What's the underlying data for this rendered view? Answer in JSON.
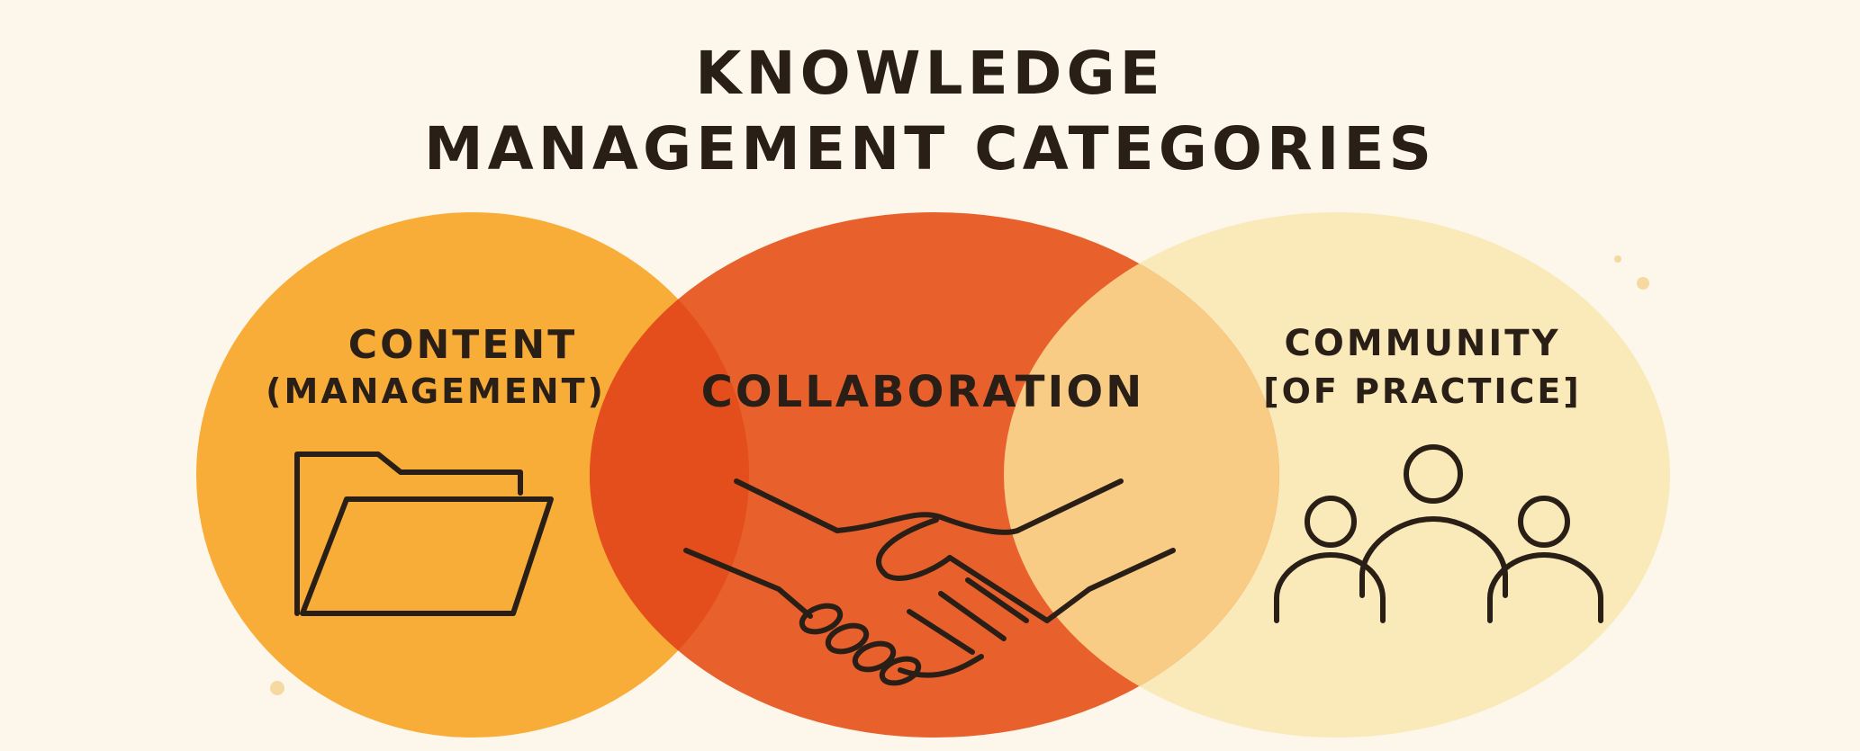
{
  "title": {
    "line1": "KNOWLEDGE",
    "line2": "MANAGEMENT CATEGORIES"
  },
  "circles": [
    {
      "id": "content",
      "line1": "CONTENT",
      "line2": "(MANAGEMENT)",
      "icon": "folder-icon",
      "color": "#f8ad38"
    },
    {
      "id": "collaboration",
      "line1": "COLLABORATION",
      "line2": "",
      "icon": "handshake-icon",
      "color": "#e8612c"
    },
    {
      "id": "community",
      "line1": "COMMUNITY",
      "line2": "[OF PRACTICE]",
      "icon": "people-group-icon",
      "color": "#faeab9"
    }
  ],
  "colors": {
    "background": "#fcf7ea",
    "text": "#2a1f17",
    "overlap_content_collab": "#e34e1c",
    "overlap_collab_community": "#f9cc85"
  }
}
